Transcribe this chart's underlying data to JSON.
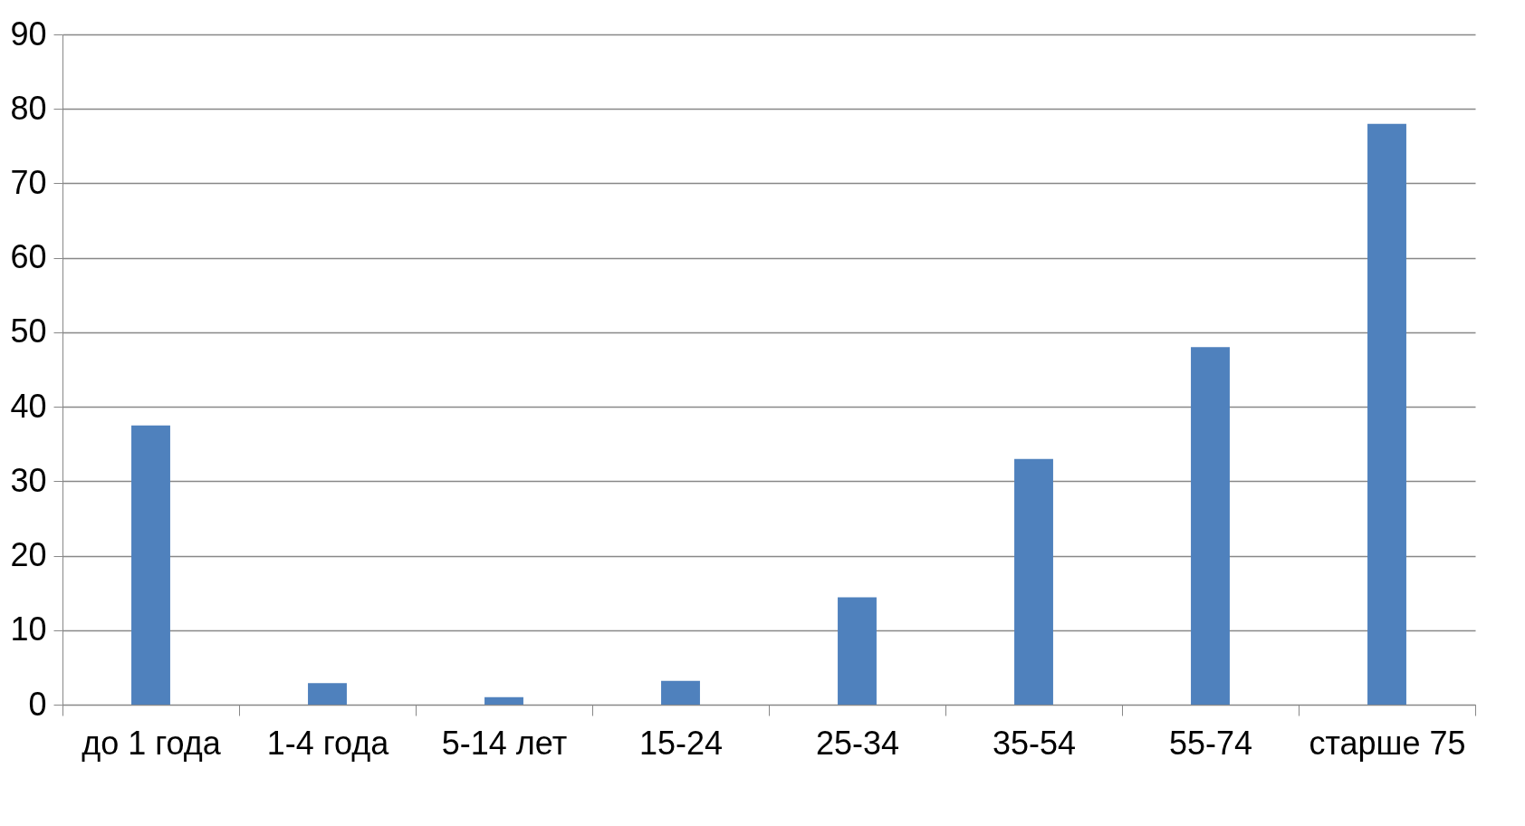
{
  "chart_data": {
    "type": "bar",
    "categories": [
      "до 1 года",
      "1-4 года",
      "5-14 лет",
      "15-24",
      "25-34",
      "35-54",
      "55-74",
      "старше 75"
    ],
    "values": [
      37.5,
      2.9,
      1.0,
      3.2,
      14.4,
      33,
      48,
      78
    ],
    "color": "#4f81bd",
    "ylim": [
      0,
      90
    ],
    "yticks": [
      0,
      10,
      20,
      30,
      40,
      50,
      60,
      70,
      80,
      90
    ],
    "grid": "y"
  }
}
